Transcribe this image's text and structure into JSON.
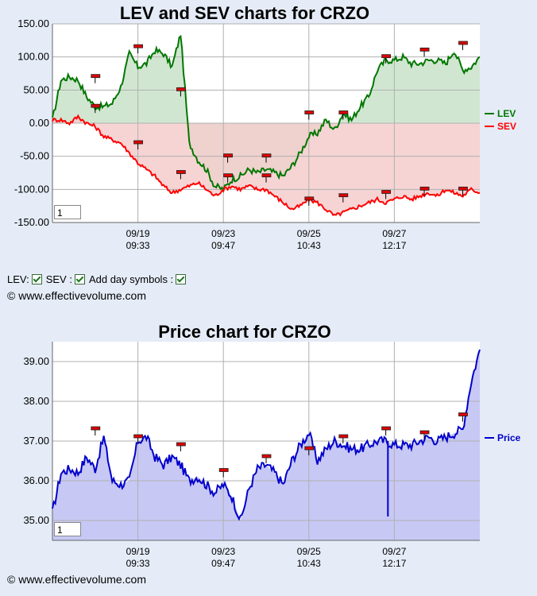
{
  "chart_data": [
    {
      "type": "line",
      "title": "LEV and SEV charts for CRZO",
      "ylim": [
        -150,
        150
      ],
      "yticks": [
        "150.00",
        "100.00",
        "50.00",
        "0.00",
        "-50.00",
        "-100.00",
        "-150.00"
      ],
      "xticks": [
        [
          "09/19",
          "09:33"
        ],
        [
          "09/23",
          "09:47"
        ],
        [
          "09/25",
          "10:43"
        ],
        [
          "09/27",
          "12:17"
        ]
      ],
      "grid": true,
      "legend_position": "right",
      "zoom_value": "1",
      "x": [
        0,
        2,
        4,
        6,
        8,
        10,
        12,
        14,
        16,
        18,
        20,
        22,
        24,
        26,
        28,
        30,
        32,
        34,
        36,
        38,
        40,
        42,
        44,
        46,
        48,
        50,
        52,
        54,
        56,
        58,
        60,
        62,
        64,
        66,
        68,
        70,
        72,
        74,
        76,
        78,
        80,
        82,
        84,
        86,
        88,
        90,
        92,
        94,
        96,
        98,
        100
      ],
      "series": [
        {
          "name": "LEV",
          "color": "#007700",
          "fill": "#c9e2c9",
          "values": [
            5,
            65,
            70,
            65,
            40,
            25,
            25,
            30,
            55,
            105,
            85,
            90,
            110,
            105,
            85,
            135,
            -30,
            -55,
            -70,
            -95,
            -100,
            -85,
            -80,
            -70,
            -75,
            -70,
            -75,
            -80,
            -65,
            -45,
            -20,
            -15,
            5,
            -10,
            15,
            5,
            25,
            40,
            80,
            95,
            95,
            100,
            90,
            90,
            95,
            95,
            90,
            110,
            80,
            85,
            100
          ]
        },
        {
          "name": "SEV",
          "color": "#ff0000",
          "fill": "#f5cccc",
          "values": [
            5,
            5,
            0,
            10,
            0,
            -5,
            -20,
            -25,
            -30,
            -45,
            -60,
            -70,
            -80,
            -95,
            -105,
            -100,
            -95,
            -90,
            -100,
            -110,
            -100,
            -95,
            -100,
            -95,
            -100,
            -100,
            -110,
            -120,
            -130,
            -125,
            -115,
            -120,
            -130,
            -140,
            -135,
            -130,
            -125,
            -120,
            -115,
            -120,
            -115,
            -110,
            -115,
            -110,
            -105,
            -110,
            -100,
            -105,
            -110,
            -100,
            -105
          ]
        }
      ],
      "day_markers_top": [
        {
          "x": 10,
          "v": 70
        },
        {
          "x": 20,
          "v": 115
        },
        {
          "x": 30,
          "v": 50
        },
        {
          "x": 41,
          "v": -50
        },
        {
          "x": 50,
          "v": -50
        },
        {
          "x": 60,
          "v": 15
        },
        {
          "x": 68,
          "v": 15
        },
        {
          "x": 78,
          "v": 100
        },
        {
          "x": 87,
          "v": 110
        },
        {
          "x": 96,
          "v": 120
        }
      ],
      "day_markers_bottom": [
        {
          "x": 10,
          "v": 25
        },
        {
          "x": 20,
          "v": -30
        },
        {
          "x": 30,
          "v": -75
        },
        {
          "x": 41,
          "v": -80
        },
        {
          "x": 50,
          "v": -80
        },
        {
          "x": 60,
          "v": -115
        },
        {
          "x": 68,
          "v": -110
        },
        {
          "x": 78,
          "v": -105
        },
        {
          "x": 87,
          "v": -100
        },
        {
          "x": 96,
          "v": -100
        }
      ]
    },
    {
      "type": "area",
      "title": "Price chart for CRZO",
      "ylim": [
        34.5,
        39.5
      ],
      "yticks": [
        "39.00",
        "38.00",
        "37.00",
        "36.00",
        "35.00"
      ],
      "xticks": [
        [
          "09/19",
          "09:33"
        ],
        [
          "09/23",
          "09:47"
        ],
        [
          "09/25",
          "10:43"
        ],
        [
          "09/27",
          "12:17"
        ]
      ],
      "grid": true,
      "legend_position": "right",
      "zoom_value": "1",
      "x": [
        0,
        2,
        4,
        6,
        8,
        10,
        12,
        14,
        16,
        18,
        20,
        22,
        24,
        26,
        28,
        30,
        32,
        34,
        36,
        38,
        40,
        42,
        44,
        46,
        48,
        50,
        52,
        54,
        56,
        58,
        60,
        62,
        64,
        66,
        68,
        70,
        72,
        74,
        76,
        78,
        80,
        82,
        84,
        86,
        88,
        90,
        92,
        94,
        96,
        98,
        100
      ],
      "series": [
        {
          "name": "Price",
          "color": "#0000cc",
          "fill": "#c8c8f5",
          "values": [
            35.2,
            36.2,
            36.3,
            36.2,
            36.6,
            36.3,
            37.1,
            36.0,
            35.9,
            36.0,
            37.0,
            37.1,
            36.6,
            36.4,
            36.6,
            36.4,
            36.0,
            36.1,
            35.9,
            35.7,
            35.9,
            35.6,
            35.0,
            35.8,
            36.3,
            36.4,
            36.2,
            35.9,
            36.5,
            36.9,
            37.2,
            36.5,
            36.8,
            37.0,
            36.9,
            36.8,
            36.8,
            36.9,
            37.0,
            37.0,
            36.9,
            36.9,
            36.9,
            37.0,
            37.1,
            37.0,
            37.1,
            37.2,
            37.3,
            38.5,
            39.3
          ]
        }
      ],
      "day_markers": [
        {
          "x": 10,
          "v": 37.3
        },
        {
          "x": 20,
          "v": 37.1
        },
        {
          "x": 30,
          "v": 36.9
        },
        {
          "x": 40,
          "v": 36.25
        },
        {
          "x": 50,
          "v": 36.6
        },
        {
          "x": 60,
          "v": 36.8
        },
        {
          "x": 68,
          "v": 37.1
        },
        {
          "x": 78,
          "v": 37.3
        },
        {
          "x": 87,
          "v": 37.2
        },
        {
          "x": 96,
          "v": 37.65
        }
      ],
      "spike": {
        "x": 78.5,
        "v": 35.1
      }
    }
  ],
  "controls": {
    "lev_label": "LEV:",
    "sev_label": "SEV :",
    "day_symbols_label": "Add day symbols :"
  },
  "copyright_top": "© www.effectivevolume.com",
  "copyright_bottom": "© www.effectivevolume.com"
}
